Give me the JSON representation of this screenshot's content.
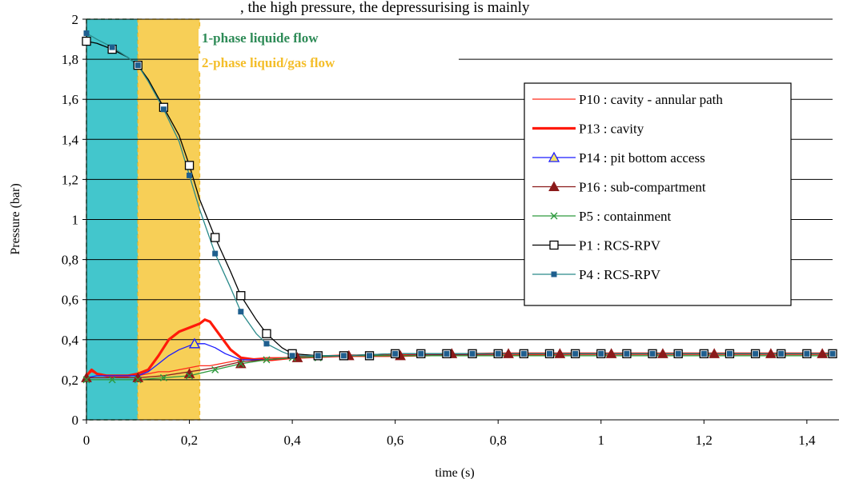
{
  "top_text": ", the high pressure, the depressurising is mainly",
  "zones": [
    {
      "label": "1-phase liquide flow",
      "from": 0,
      "to": 0.1,
      "fill": "#43c6cc",
      "text_color": "#2e8b57"
    },
    {
      "label": "2-phase liquid/gas flow",
      "from": 0.1,
      "to": 0.22,
      "fill": "#f7cf57",
      "text_color": "#f4be2a"
    }
  ],
  "chart_data": {
    "type": "line",
    "xlabel": "time (s)",
    "ylabel": "Pressure (bar)",
    "xlim": [
      0,
      1.45
    ],
    "ylim": [
      0,
      2
    ],
    "xticks": [
      0,
      0.2,
      0.4,
      0.6,
      0.8,
      1,
      1.2,
      1.4
    ],
    "xtick_labels": [
      "0",
      "0,2",
      "0,4",
      "0,6",
      "0,8",
      "1",
      "1,2",
      "1,4"
    ],
    "yticks": [
      0,
      0.2,
      0.4,
      0.6,
      0.8,
      1,
      1.2,
      1.4,
      1.6,
      1.8,
      2
    ],
    "ytick_labels": [
      "0",
      "0,2",
      "0,4",
      "0,6",
      "0,8",
      "1",
      "1,2",
      "1,4",
      "1,6",
      "1,8",
      "2"
    ],
    "grid": "horizontal",
    "legend_position": "right",
    "series": [
      {
        "name": "P10 : cavity - annular path",
        "color": "#ff2a1a",
        "width": 1.3,
        "marker": "none",
        "x": [
          0,
          0.01,
          0.02,
          0.04,
          0.06,
          0.08,
          0.1,
          0.12,
          0.14,
          0.16,
          0.18,
          0.2,
          0.22,
          0.24,
          0.26,
          0.3,
          0.35,
          0.4,
          0.5,
          0.6,
          0.8,
          1,
          1.2,
          1.45
        ],
        "y": [
          0.22,
          0.24,
          0.23,
          0.22,
          0.22,
          0.22,
          0.22,
          0.23,
          0.24,
          0.24,
          0.25,
          0.26,
          0.27,
          0.27,
          0.28,
          0.3,
          0.31,
          0.31,
          0.32,
          0.32,
          0.32,
          0.33,
          0.33,
          0.33
        ]
      },
      {
        "name": "P13 : cavity",
        "color": "#ff1a0a",
        "width": 3.2,
        "marker": "none",
        "x": [
          0,
          0.01,
          0.02,
          0.04,
          0.06,
          0.08,
          0.1,
          0.12,
          0.14,
          0.16,
          0.18,
          0.2,
          0.22,
          0.23,
          0.24,
          0.26,
          0.28,
          0.3,
          0.33,
          0.36,
          0.4,
          0.5,
          0.6,
          0.8,
          1,
          1.2,
          1.45
        ],
        "y": [
          0.22,
          0.25,
          0.23,
          0.22,
          0.22,
          0.22,
          0.23,
          0.25,
          0.32,
          0.4,
          0.44,
          0.46,
          0.48,
          0.5,
          0.49,
          0.42,
          0.35,
          0.31,
          0.3,
          0.3,
          0.31,
          0.32,
          0.32,
          0.33,
          0.33,
          0.33,
          0.33
        ]
      },
      {
        "name": "P14 : pit bottom access",
        "color": "#1a1aff",
        "width": 1.3,
        "marker": "triangle-open",
        "x": [
          0,
          0.02,
          0.04,
          0.06,
          0.08,
          0.1,
          0.12,
          0.14,
          0.16,
          0.18,
          0.2,
          0.21,
          0.23,
          0.25,
          0.27,
          0.3,
          0.35,
          0.4,
          0.5,
          0.6,
          0.8,
          1,
          1.2,
          1.45
        ],
        "y": [
          0.21,
          0.22,
          0.22,
          0.22,
          0.22,
          0.22,
          0.24,
          0.28,
          0.32,
          0.35,
          0.37,
          0.38,
          0.38,
          0.36,
          0.33,
          0.3,
          0.3,
          0.31,
          0.32,
          0.32,
          0.33,
          0.33,
          0.33,
          0.33
        ],
        "marker_x": [
          0.21
        ],
        "marker_y": [
          0.38
        ]
      },
      {
        "name": "P16 : sub-compartment",
        "color": "#8b1a1a",
        "width": 1.3,
        "marker": "triangle-filled",
        "x": [
          0,
          0.05,
          0.1,
          0.15,
          0.2,
          0.25,
          0.3,
          0.35,
          0.4,
          0.5,
          0.6,
          0.8,
          1,
          1.2,
          1.45
        ],
        "y": [
          0.21,
          0.21,
          0.21,
          0.22,
          0.24,
          0.26,
          0.29,
          0.3,
          0.31,
          0.32,
          0.32,
          0.33,
          0.33,
          0.33,
          0.33
        ],
        "marker_x": [
          0,
          0.1,
          0.2,
          0.3,
          0.41,
          0.51,
          0.61,
          0.71,
          0.82,
          0.92,
          1.02,
          1.12,
          1.22,
          1.33,
          1.43
        ],
        "marker_y": [
          0.21,
          0.21,
          0.23,
          0.28,
          0.31,
          0.32,
          0.32,
          0.33,
          0.33,
          0.33,
          0.33,
          0.33,
          0.33,
          0.33,
          0.33
        ]
      },
      {
        "name": "P5 : containment",
        "color": "#2e9a3e",
        "width": 1.3,
        "marker": "x",
        "x": [
          0,
          0.05,
          0.1,
          0.15,
          0.2,
          0.25,
          0.3,
          0.35,
          0.4,
          0.5,
          0.6,
          0.8,
          1,
          1.2,
          1.45
        ],
        "y": [
          0.2,
          0.2,
          0.2,
          0.21,
          0.22,
          0.25,
          0.28,
          0.3,
          0.31,
          0.32,
          0.32,
          0.32,
          0.32,
          0.32,
          0.32
        ],
        "marker_x": [
          0,
          0.05,
          0.1,
          0.15,
          0.2,
          0.25,
          0.3,
          0.35,
          0.4,
          0.45,
          0.5,
          0.55
        ],
        "marker_y": [
          0.2,
          0.2,
          0.2,
          0.21,
          0.22,
          0.25,
          0.28,
          0.3,
          0.31,
          0.31,
          0.32,
          0.32
        ]
      },
      {
        "name": "P1 : RCS-RPV",
        "color": "#000000",
        "width": 1.3,
        "marker": "square-open",
        "x": [
          0,
          0.02,
          0.05,
          0.08,
          0.1,
          0.12,
          0.15,
          0.18,
          0.2,
          0.22,
          0.25,
          0.28,
          0.3,
          0.33,
          0.35,
          0.38,
          0.4,
          0.45,
          0.5,
          0.6,
          0.8,
          1,
          1.2,
          1.45
        ],
        "y": [
          1.89,
          1.88,
          1.85,
          1.81,
          1.77,
          1.7,
          1.56,
          1.42,
          1.27,
          1.1,
          0.91,
          0.74,
          0.62,
          0.5,
          0.43,
          0.36,
          0.33,
          0.32,
          0.32,
          0.33,
          0.33,
          0.33,
          0.33,
          0.33
        ],
        "marker_x": [
          0,
          0.05,
          0.1,
          0.15,
          0.2,
          0.25,
          0.3,
          0.35,
          0.4,
          0.45,
          0.5,
          0.55,
          0.6,
          0.65,
          0.7,
          0.75,
          0.8,
          0.85,
          0.9,
          0.95,
          1,
          1.05,
          1.1,
          1.15,
          1.2,
          1.25,
          1.3,
          1.35,
          1.4,
          1.45
        ],
        "marker_y": [
          1.89,
          1.85,
          1.77,
          1.56,
          1.27,
          0.91,
          0.62,
          0.43,
          0.33,
          0.32,
          0.32,
          0.32,
          0.33,
          0.33,
          0.33,
          0.33,
          0.33,
          0.33,
          0.33,
          0.33,
          0.33,
          0.33,
          0.33,
          0.33,
          0.33,
          0.33,
          0.33,
          0.33,
          0.33,
          0.33
        ]
      },
      {
        "name": "P4 : RCS-RPV",
        "color": "#2a8a8a",
        "width": 1.3,
        "marker": "square-filled",
        "x": [
          0,
          0.02,
          0.05,
          0.08,
          0.1,
          0.12,
          0.15,
          0.18,
          0.2,
          0.22,
          0.25,
          0.28,
          0.3,
          0.33,
          0.35,
          0.38,
          0.4,
          0.45,
          0.5,
          0.6,
          0.8,
          1,
          1.2,
          1.45
        ],
        "y": [
          1.93,
          1.9,
          1.86,
          1.81,
          1.77,
          1.69,
          1.55,
          1.39,
          1.22,
          1.05,
          0.83,
          0.66,
          0.54,
          0.43,
          0.38,
          0.34,
          0.32,
          0.32,
          0.32,
          0.33,
          0.33,
          0.33,
          0.33,
          0.33
        ],
        "marker_x": [
          0,
          0.05,
          0.1,
          0.15,
          0.2,
          0.25,
          0.3,
          0.35,
          0.4,
          0.45,
          0.5,
          0.55,
          0.6,
          0.65,
          0.7,
          0.75,
          0.8,
          0.85,
          0.9,
          0.95,
          1,
          1.05,
          1.1,
          1.15,
          1.2,
          1.25,
          1.3,
          1.35,
          1.4,
          1.45
        ],
        "marker_y": [
          1.93,
          1.86,
          1.77,
          1.55,
          1.22,
          0.83,
          0.54,
          0.38,
          0.32,
          0.32,
          0.32,
          0.32,
          0.33,
          0.33,
          0.33,
          0.33,
          0.33,
          0.33,
          0.33,
          0.33,
          0.33,
          0.33,
          0.33,
          0.33,
          0.33,
          0.33,
          0.33,
          0.33,
          0.33,
          0.33
        ]
      }
    ]
  }
}
